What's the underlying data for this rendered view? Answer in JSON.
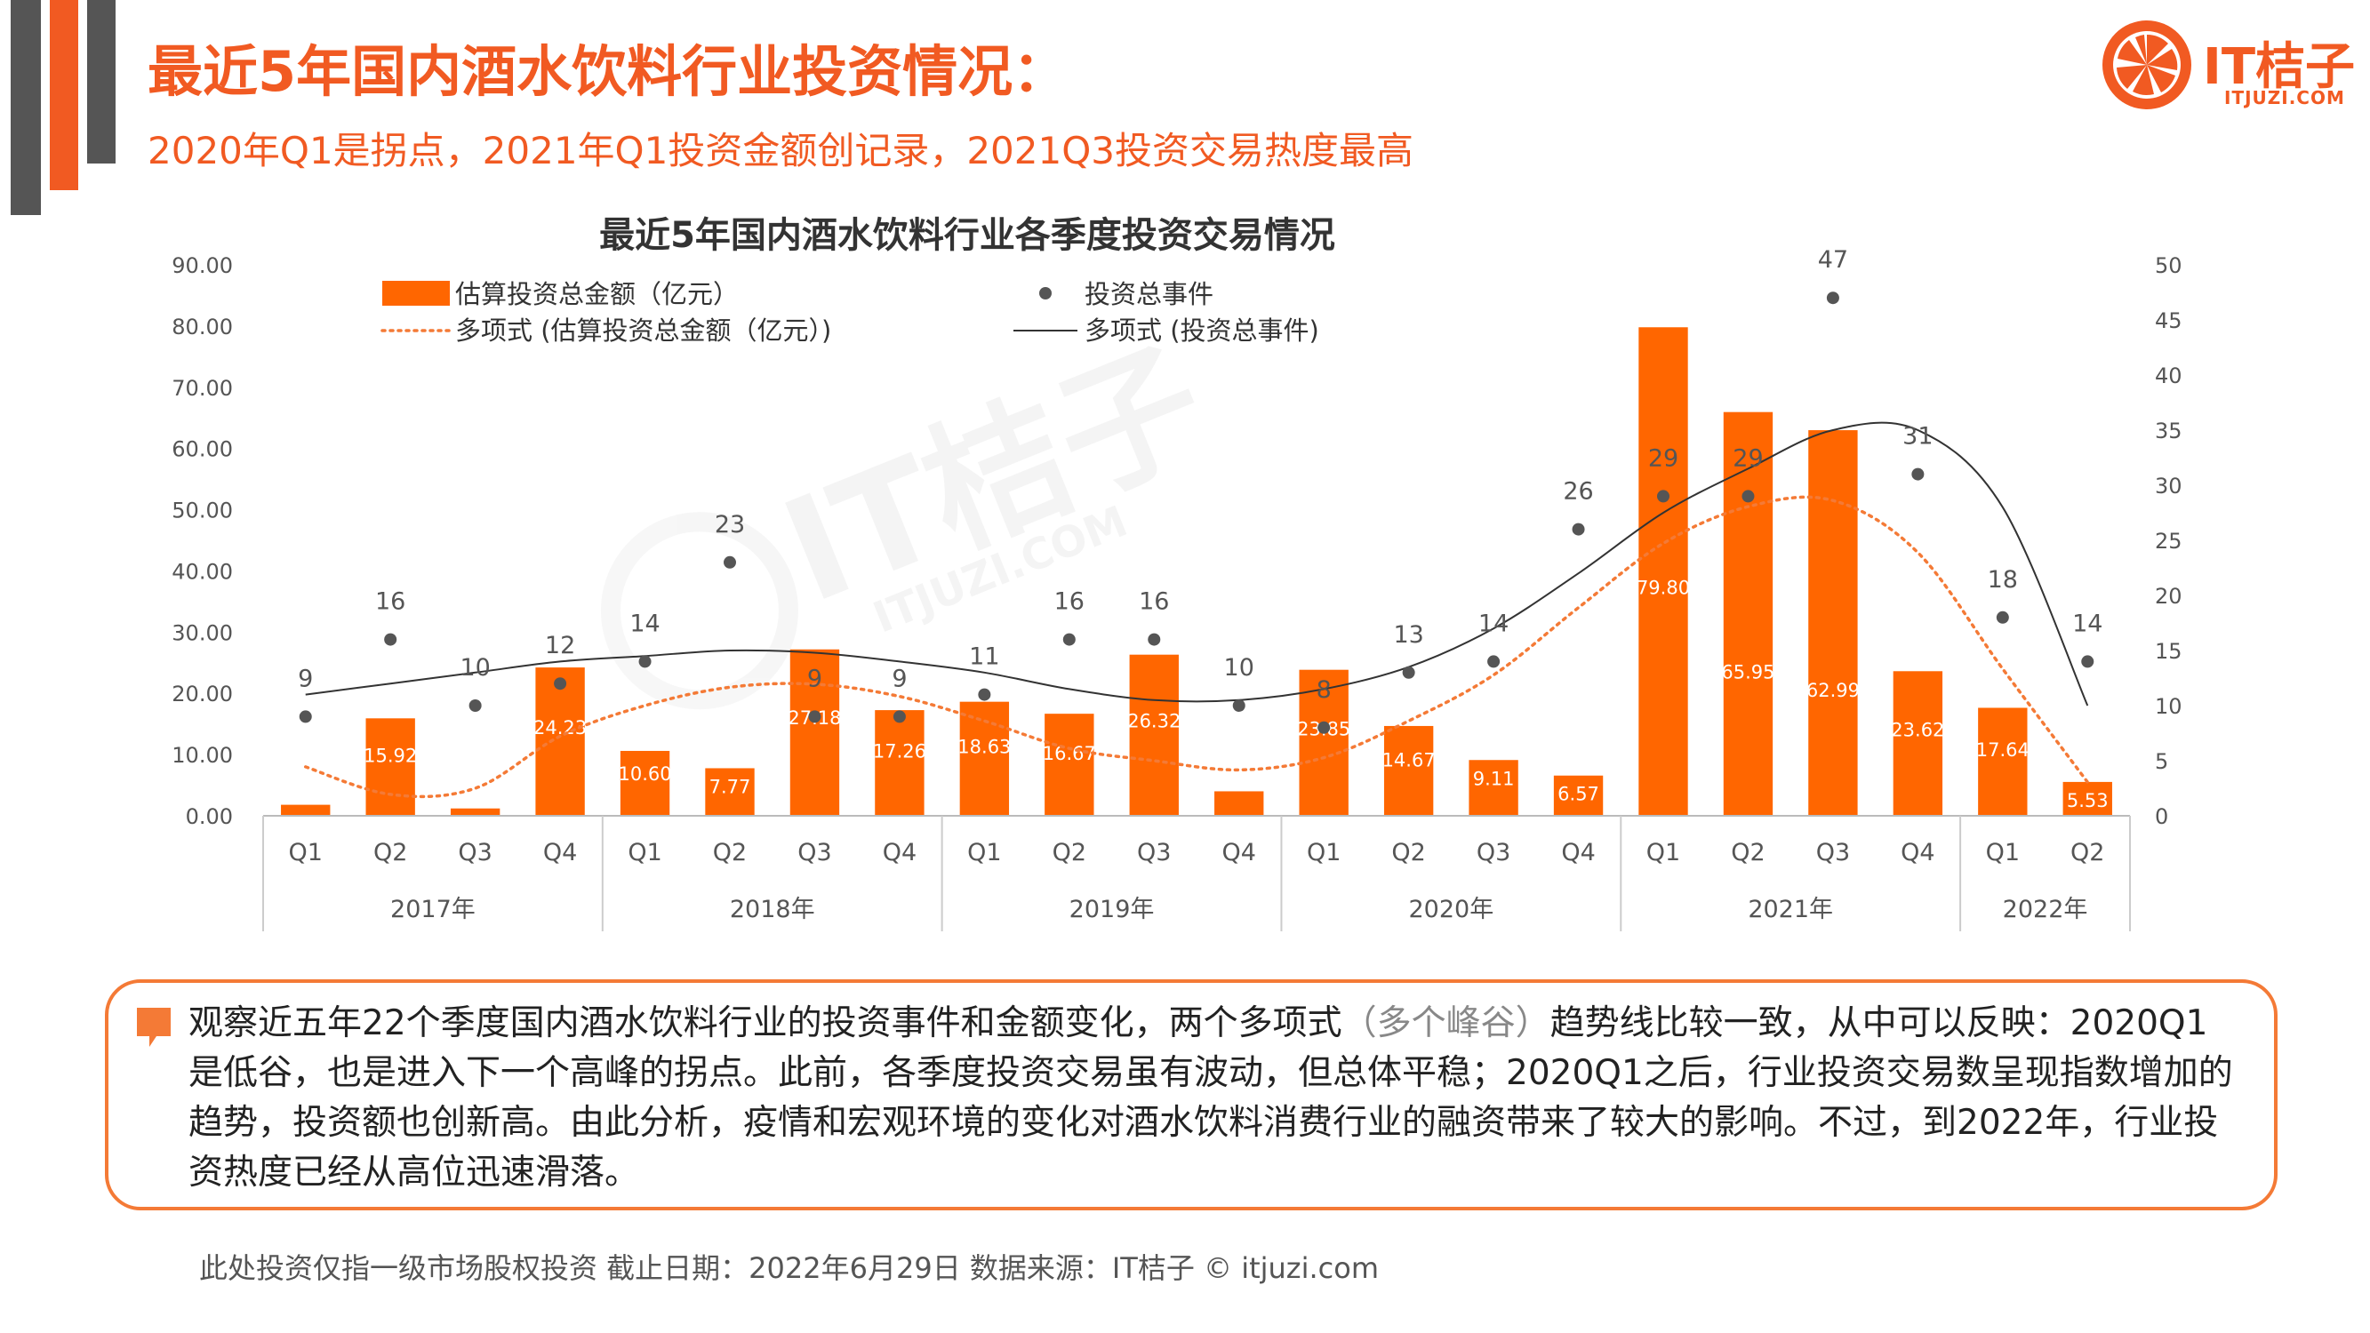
{
  "title": "最近5年国内酒水饮料行业投资情况：",
  "subtitle": "2020年Q1是拐点，2021年Q1投资金额创记录，2021Q3投资交易热度最高",
  "logo": {
    "main": "IT桔子",
    "sub": "ITJUZI.COM"
  },
  "watermark": {
    "main": "IT桔子",
    "sub": "ITJUZI.COM"
  },
  "colors": {
    "accent": "#f15a22",
    "bar": "#ff6600",
    "dark": "#555555"
  },
  "chart_data": {
    "type": "bar",
    "title": "最近5年国内酒水饮料行业各季度投资交易情况",
    "years": [
      {
        "label": "2017年",
        "count": 4
      },
      {
        "label": "2018年",
        "count": 4
      },
      {
        "label": "2019年",
        "count": 4
      },
      {
        "label": "2020年",
        "count": 4
      },
      {
        "label": "2021年",
        "count": 4
      },
      {
        "label": "2022年",
        "count": 2
      }
    ],
    "categories": [
      "Q1",
      "Q2",
      "Q3",
      "Q4",
      "Q1",
      "Q2",
      "Q3",
      "Q4",
      "Q1",
      "Q2",
      "Q3",
      "Q4",
      "Q1",
      "Q2",
      "Q3",
      "Q4",
      "Q1",
      "Q2",
      "Q3",
      "Q4",
      "Q1",
      "Q2"
    ],
    "y_left": {
      "min": 0,
      "max": 90,
      "ticks": [
        "0.00",
        "10.00",
        "20.00",
        "30.00",
        "40.00",
        "50.00",
        "60.00",
        "70.00",
        "80.00",
        "90.00"
      ]
    },
    "y_right": {
      "min": 0,
      "max": 50,
      "ticks": [
        "0",
        "5",
        "10",
        "15",
        "20",
        "25",
        "30",
        "35",
        "40",
        "45",
        "50"
      ]
    },
    "series": [
      {
        "name": "估算投资总金额（亿元）",
        "axis": "left",
        "kind": "bar",
        "values": [
          1.8,
          15.92,
          1.2,
          24.23,
          10.6,
          7.77,
          27.18,
          17.26,
          18.63,
          16.67,
          26.32,
          4.0,
          23.85,
          14.67,
          9.11,
          6.57,
          79.8,
          65.95,
          62.99,
          23.62,
          17.64,
          5.53
        ],
        "labels": [
          "",
          "15.92",
          "",
          "24.23",
          "10.60",
          "7.77",
          "27.18",
          "17.26",
          "18.63",
          "16.67",
          "26.32",
          "",
          "23.85",
          "14.67",
          "9.11",
          "6.57",
          "79.80",
          "65.95",
          "62.99",
          "23.62",
          "17.64",
          "5.53"
        ]
      },
      {
        "name": "投资总事件",
        "axis": "right",
        "kind": "scatter",
        "values": [
          9,
          16,
          10,
          12,
          14,
          23,
          9,
          9,
          11,
          16,
          16,
          10,
          8,
          13,
          14,
          26,
          29,
          29,
          47,
          31,
          18,
          14
        ]
      },
      {
        "name": "多项式 (估算投资总金额（亿元）)",
        "axis": "left",
        "kind": "trend-dotted",
        "values": [
          8,
          3.5,
          4.5,
          13,
          18,
          21,
          21.5,
          19.5,
          15.5,
          11,
          9,
          7.5,
          9.5,
          15.5,
          23,
          34,
          44.5,
          50.5,
          51.5,
          43,
          24,
          5.5
        ]
      },
      {
        "name": "多项式 (投资总事件)",
        "axis": "right",
        "kind": "trend-solid",
        "values": [
          11,
          12,
          13,
          14,
          14.5,
          15,
          14.8,
          14,
          13,
          11.5,
          10.5,
          10.5,
          11.5,
          13.5,
          17,
          22,
          27.5,
          31.5,
          35,
          35,
          28,
          10
        ]
      }
    ]
  },
  "note": {
    "part1": "观察近五年22个季度国内酒水饮料行业的投资事件和金额变化，两个多项式",
    "part2": "（多个峰谷）",
    "part3": "趋势线比较一致，从中可以反映：2020Q1是低谷，也是进入下一个高峰的拐点。此前，各季度投资交易虽有波动，但总体平稳；2020Q1之后，行业投资交易数呈现指数增加的趋势，投资额也创新高。由此分析，疫情和宏观环境的变化对酒水饮料消费行业的融资带来了较大的影响。不过，到2022年，行业投资热度已经从高位迅速滑落。"
  },
  "footer": "此处投资仅指一级市场股权投资   截止日期：2022年6月29日     数据来源：IT桔子 © itjuzi.com"
}
